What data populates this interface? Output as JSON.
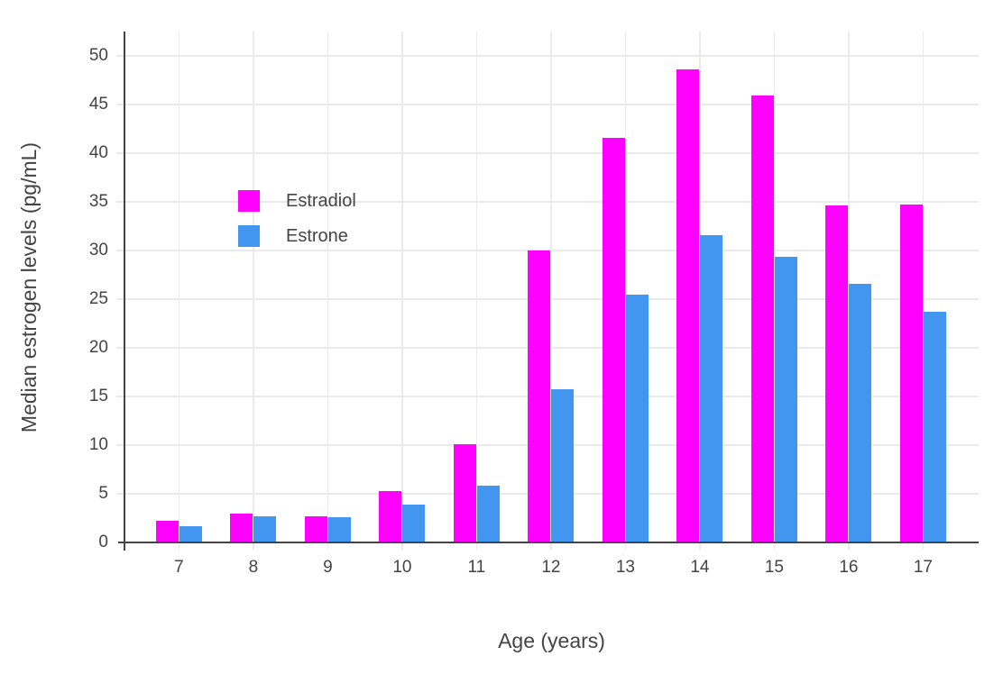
{
  "colors": {
    "estradiol": "#FF00FF",
    "estrone": "#4296F0",
    "gridline": "#EAEAEA",
    "axis_line": "#444444",
    "text": "#444444",
    "background": "#FFFFFF"
  },
  "chart_data": {
    "type": "bar",
    "title": "",
    "xlabel": "Age (years)",
    "ylabel": "Median estrogen levels (pg/mL)",
    "categories": [
      7,
      8,
      9,
      10,
      11,
      12,
      13,
      14,
      15,
      16,
      17
    ],
    "series": [
      {
        "name": "Estradiol",
        "color": "#FF00FF",
        "values": [
          2.2,
          3.0,
          2.7,
          5.3,
          10.1,
          30.0,
          41.6,
          48.6,
          45.9,
          34.6,
          34.7
        ]
      },
      {
        "name": "Estrone",
        "color": "#4296F0",
        "values": [
          1.7,
          2.7,
          2.6,
          3.9,
          5.8,
          15.7,
          25.5,
          31.6,
          29.4,
          26.6,
          23.7
        ]
      }
    ],
    "ylim": [
      0,
      52.5
    ],
    "ytick_step": 5,
    "ytick_labels": [
      "0",
      "5",
      "10",
      "15",
      "20",
      "25",
      "30",
      "35",
      "40",
      "45",
      "50"
    ],
    "grid": "horizontal and vertical light gray gridlines",
    "legend_position": "inside top-left",
    "bar_mode": "grouped"
  }
}
